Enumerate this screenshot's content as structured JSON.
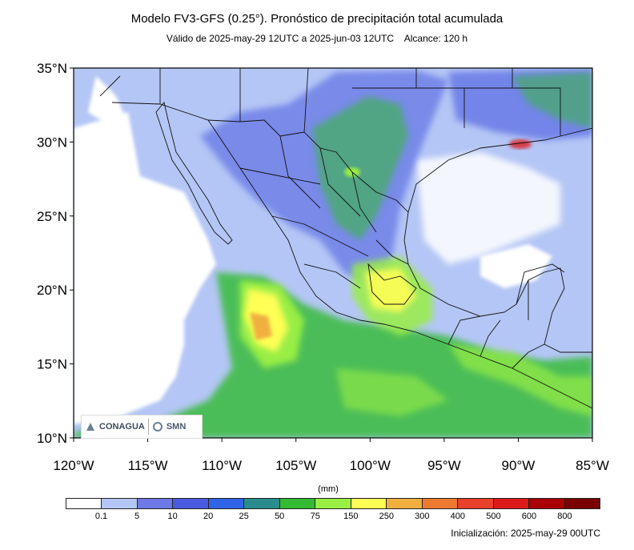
{
  "title": "Modelo FV3-GFS (0.25°). Pronóstico de precipitación total acumulada",
  "subtitle": "Válido de 2025-may-29 12UTC a 2025-jun-03 12UTC    Alcance: 120 h",
  "initialization": "Inicialización: 2025-may-29 00UTC",
  "map": {
    "lat_labels": [
      "35°N",
      "30°N",
      "25°N",
      "20°N",
      "15°N",
      "10°N"
    ],
    "lon_labels": [
      "120°W",
      "115°W",
      "110°W",
      "105°W",
      "100°W",
      "95°W",
      "90°W",
      "85°W"
    ],
    "lat_range": [
      10,
      35
    ],
    "lon_range": [
      -120,
      -85
    ]
  },
  "colorbar": {
    "unit": "(mm)",
    "ticks": [
      "0.1",
      "5",
      "10",
      "20",
      "25",
      "50",
      "75",
      "150",
      "250",
      "300",
      "400",
      "500",
      "600",
      "800"
    ],
    "colors": [
      "#ffffff",
      "#b4c6f5",
      "#6e78e6",
      "#4a5ae0",
      "#2f64e6",
      "#2a8c8c",
      "#33bb33",
      "#99ee44",
      "#ffff55",
      "#f0b040",
      "#ee7a30",
      "#e8402a",
      "#dd1a1a",
      "#aa0000",
      "#7a0000"
    ]
  },
  "logos": {
    "conagua": "CONAGUA",
    "smn": "SMN"
  }
}
